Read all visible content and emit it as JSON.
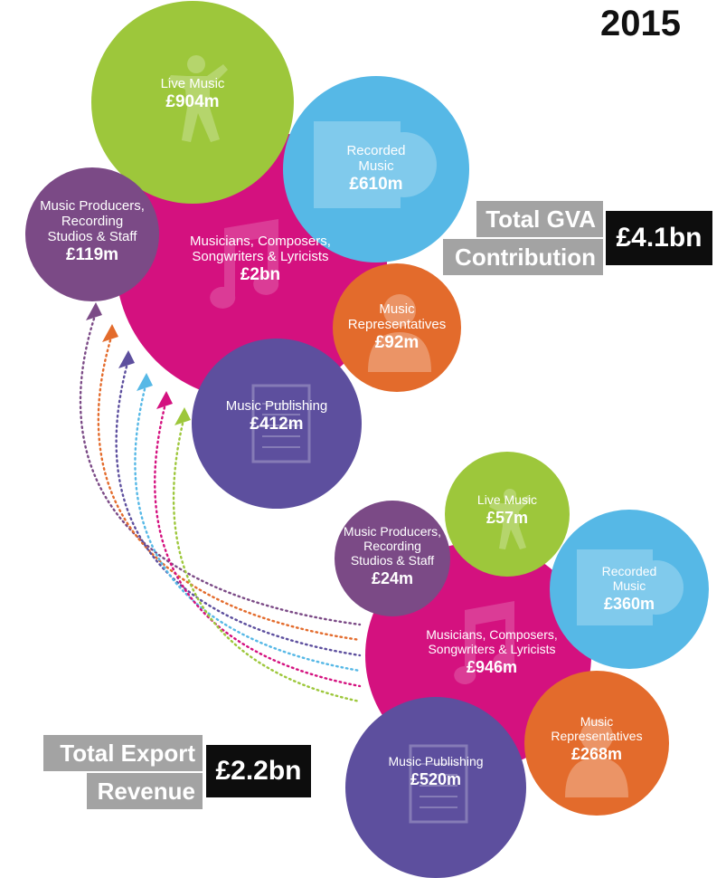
{
  "year": "2015",
  "gva": {
    "label_line1": "Total GVA",
    "label_line2": "Contribution",
    "total": "£4.1bn",
    "segments": [
      {
        "label": "Live Music",
        "value": "£904m",
        "color": "#9dc73b",
        "icon": "dancer-icon"
      },
      {
        "label": "Recorded\nMusic",
        "value": "£610m",
        "color": "#56b8e6",
        "icon": "record-icon"
      },
      {
        "label": "Musicians, Composers,\nSongwriters & Lyricists",
        "value": "£2bn",
        "color": "#d4117f",
        "icon": "music-note-icon"
      },
      {
        "label": "Music Producers,\nRecording\nStudios & Staff",
        "value": "£119m",
        "color": "#7b4a86",
        "icon": "none"
      },
      {
        "label": "Music\nRepresentatives",
        "value": "£92m",
        "color": "#e36b2c",
        "icon": "person-icon"
      },
      {
        "label": "Music Publishing",
        "value": "£412m",
        "color": "#5d4f9e",
        "icon": "sheet-music-icon"
      }
    ]
  },
  "export": {
    "label_line1": "Total Export",
    "label_line2": "Revenue",
    "total": "£2.2bn",
    "segments": [
      {
        "label": "Live Music",
        "value": "£57m",
        "color": "#9dc73b",
        "icon": "dancer-icon"
      },
      {
        "label": "Recorded\nMusic",
        "value": "£360m",
        "color": "#56b8e6",
        "icon": "record-icon"
      },
      {
        "label": "Musicians, Composers,\nSongwriters & Lyricists",
        "value": "£946m",
        "color": "#d4117f",
        "icon": "music-note-icon"
      },
      {
        "label": "Music Producers,\nRecording\nStudios & Staff",
        "value": "£24m",
        "color": "#7b4a86",
        "icon": "none"
      },
      {
        "label": "Music\nRepresentatives",
        "value": "£268m",
        "color": "#e36b2c",
        "icon": "person-icon"
      },
      {
        "label": "Music Publishing",
        "value": "£520m",
        "color": "#5d4f9e",
        "icon": "sheet-music-icon"
      }
    ]
  },
  "connector_colors": [
    "#7b4a86",
    "#e36b2c",
    "#5d4f9e",
    "#56b8e6",
    "#d4117f",
    "#9dc73b"
  ]
}
